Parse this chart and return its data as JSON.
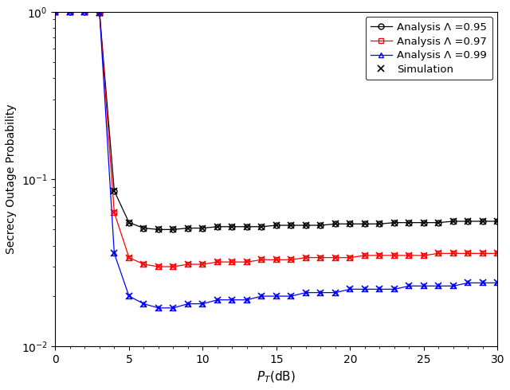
{
  "title": "",
  "xlabel": "$P_T$(dB)",
  "ylabel": "Secrecy Outage Probability",
  "xlim": [
    0,
    30
  ],
  "x_ticks": [
    0,
    5,
    10,
    15,
    20,
    25,
    30
  ],
  "figsize": [
    6.4,
    4.9
  ],
  "dpi": 100,
  "background_color": "#ffffff",
  "analysis_x": [
    0,
    1,
    2,
    3,
    4,
    5,
    6,
    7,
    8,
    9,
    10,
    11,
    12,
    13,
    14,
    15,
    16,
    17,
    18,
    19,
    20,
    21,
    22,
    23,
    24,
    25,
    26,
    27,
    28,
    29,
    30
  ],
  "curve_095_y": [
    1.0,
    1.0,
    1.0,
    0.99,
    0.085,
    0.055,
    0.051,
    0.05,
    0.05,
    0.051,
    0.051,
    0.052,
    0.052,
    0.052,
    0.052,
    0.053,
    0.053,
    0.053,
    0.053,
    0.054,
    0.054,
    0.054,
    0.054,
    0.055,
    0.055,
    0.055,
    0.055,
    0.056,
    0.056,
    0.056,
    0.056
  ],
  "curve_097_y": [
    1.0,
    1.0,
    1.0,
    0.99,
    0.063,
    0.034,
    0.031,
    0.03,
    0.03,
    0.031,
    0.031,
    0.032,
    0.032,
    0.032,
    0.033,
    0.033,
    0.033,
    0.034,
    0.034,
    0.034,
    0.034,
    0.035,
    0.035,
    0.035,
    0.035,
    0.035,
    0.036,
    0.036,
    0.036,
    0.036,
    0.036
  ],
  "curve_099_y": [
    1.0,
    1.0,
    1.0,
    0.99,
    0.036,
    0.02,
    0.018,
    0.017,
    0.017,
    0.018,
    0.018,
    0.019,
    0.019,
    0.019,
    0.02,
    0.02,
    0.02,
    0.021,
    0.021,
    0.021,
    0.022,
    0.022,
    0.022,
    0.022,
    0.023,
    0.023,
    0.023,
    0.023,
    0.024,
    0.024,
    0.024
  ],
  "color_095": "#000000",
  "color_097": "#ff0000",
  "color_099": "#0000ff",
  "label_095": "Analysis Λ =0.95",
  "label_097": "Analysis Λ =0.97",
  "label_099": "Analysis Λ =0.99",
  "label_sim": "Simulation"
}
